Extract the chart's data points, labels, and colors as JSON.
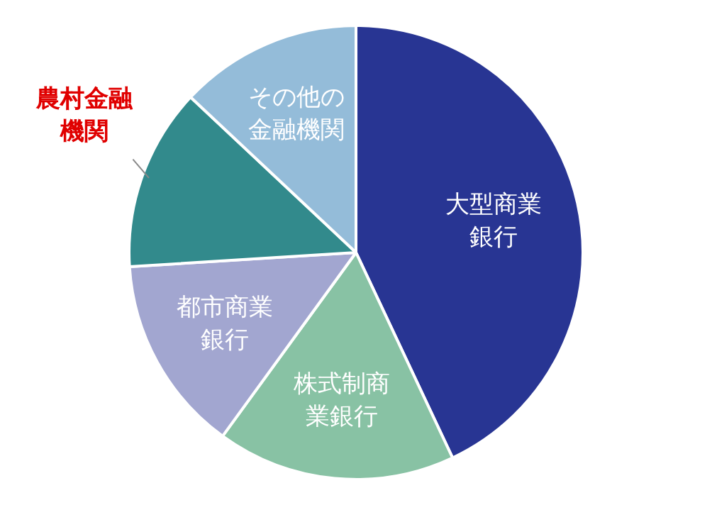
{
  "chart_data": {
    "type": "pie",
    "categories": [
      "大型商業銀行",
      "株式制商業銀行",
      "都市商業銀行",
      "農村金融機関",
      "その他の金融機関"
    ],
    "values": [
      43,
      17,
      14,
      13,
      13
    ],
    "colors": [
      "#283593",
      "#88c2a4",
      "#a2a6d0",
      "#328a8c",
      "#94bcd9"
    ]
  }
}
